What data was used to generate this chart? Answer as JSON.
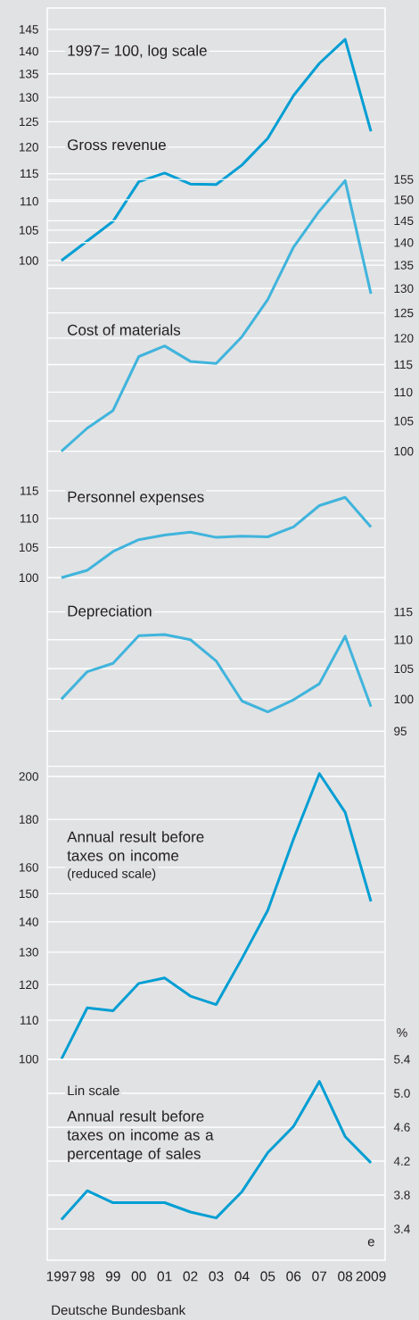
{
  "chart_data": [
    {
      "type": "line",
      "title": "Gross revenue",
      "annotations": [
        "1997= 100, log scale"
      ],
      "x": [
        1997,
        1998,
        1999,
        2000,
        2001,
        2002,
        2003,
        2004,
        2005,
        2006,
        2007,
        2008,
        2009
      ],
      "xlim": [
        1996.45,
        2009.55
      ],
      "ylim": [
        100,
        145
      ],
      "yticks": [
        100,
        105,
        110,
        115,
        120,
        125,
        130,
        135,
        140,
        145
      ],
      "log": "y",
      "grid": "y",
      "tick_labels": "y",
      "series": [
        {
          "color": "#009ed3",
          "values": [
            100,
            103.2,
            106.5,
            113.5,
            115.1,
            113.1,
            113.0,
            116.6,
            121.7,
            130.4,
            137.3,
            142.7,
            123.1
          ]
        }
      ]
    },
    {
      "type": "line",
      "title": "Cost of materials",
      "x": [
        1997,
        1998,
        1999,
        2000,
        2001,
        2002,
        2003,
        2004,
        2005,
        2006,
        2007,
        2008,
        2009
      ],
      "xlim": [
        1996.45,
        2009.55
      ],
      "y2lim": [
        100,
        155
      ],
      "y2ticks": [
        100,
        105,
        110,
        115,
        120,
        125,
        130,
        135,
        140,
        145,
        150,
        155
      ],
      "log": "y2",
      "grid": "y",
      "tick_labels": "y",
      "series": [
        {
          "color": "#40b4dc",
          "axis": "y2",
          "values": [
            100,
            103.8,
            106.8,
            116.5,
            118.5,
            115.6,
            115.2,
            120.3,
            127.7,
            139.0,
            147.3,
            154.7,
            128.9
          ]
        }
      ]
    },
    {
      "type": "line",
      "title": "Personnel expenses",
      "x": [
        1997,
        1998,
        1999,
        2000,
        2001,
        2002,
        2003,
        2004,
        2005,
        2006,
        2007,
        2008,
        2009
      ],
      "xlim": [
        1996.45,
        2009.55
      ],
      "ylim": [
        100,
        115
      ],
      "yticks": [
        100,
        105,
        110,
        115
      ],
      "log": "y",
      "grid": "y",
      "tick_labels": "y",
      "series": [
        {
          "color": "#40b4dc",
          "values": [
            100,
            101.2,
            104.3,
            106.3,
            107.1,
            107.6,
            106.7,
            106.9,
            106.8,
            108.5,
            112.3,
            113.8,
            108.5
          ]
        }
      ]
    },
    {
      "type": "line",
      "title": "Depreciation",
      "x": [
        1997,
        1998,
        1999,
        2000,
        2001,
        2002,
        2003,
        2004,
        2005,
        2006,
        2007,
        2008,
        2009
      ],
      "xlim": [
        1996.45,
        2009.55
      ],
      "y2lim": [
        95,
        115
      ],
      "y2ticks": [
        95,
        100,
        105,
        110,
        115
      ],
      "log": "y2",
      "grid": "y",
      "tick_labels": "y",
      "series": [
        {
          "color": "#40b4dc",
          "axis": "y2",
          "values": [
            100,
            104.5,
            105.9,
            110.7,
            110.9,
            110.0,
            106.3,
            99.7,
            98.0,
            99.9,
            102.5,
            110.6,
            98.8
          ]
        }
      ]
    },
    {
      "type": "line",
      "title": "Annual result before taxes on income",
      "subtitle": "(reduced scale)",
      "x": [
        1997,
        1998,
        1999,
        2000,
        2001,
        2002,
        2003,
        2004,
        2005,
        2006,
        2007,
        2008,
        2009
      ],
      "xlim": [
        1996.45,
        2009.55
      ],
      "ylim": [
        100,
        205
      ],
      "yticks": [
        100,
        110,
        120,
        130,
        140,
        150,
        160,
        180,
        200
      ],
      "log": "y",
      "grid": "y",
      "tick_labels": "y",
      "series": [
        {
          "color": "#009ed3",
          "values": [
            100,
            113.4,
            112.6,
            120.4,
            122.0,
            116.7,
            114.3,
            128.0,
            144.0,
            171.6,
            201.4,
            183.2,
            147.2
          ]
        }
      ]
    },
    {
      "type": "line",
      "title": "Annual result before taxes on income as a percentage of sales",
      "y2label": "%",
      "annotations": [
        "Lin scale",
        "e",
        "Deutsche Bundesbank"
      ],
      "x": [
        1997,
        1998,
        1999,
        2000,
        2001,
        2002,
        2003,
        2004,
        2005,
        2006,
        2007,
        2008,
        2009
      ],
      "xlim": [
        1996.45,
        2009.55
      ],
      "xticks": [
        {
          "value": 1997,
          "label": "1997"
        },
        {
          "value": 1998,
          "label": "98"
        },
        {
          "value": 1999,
          "label": "99"
        },
        {
          "value": 2000,
          "label": "00"
        },
        {
          "value": 2001,
          "label": "01"
        },
        {
          "value": 2002,
          "label": "02"
        },
        {
          "value": 2003,
          "label": "03"
        },
        {
          "value": 2004,
          "label": "04"
        },
        {
          "value": 2005,
          "label": "05"
        },
        {
          "value": 2006,
          "label": "06"
        },
        {
          "value": 2007,
          "label": "07"
        },
        {
          "value": 2008,
          "label": "08"
        },
        {
          "value": 2009,
          "label": "2009"
        }
      ],
      "y2lim": [
        3.4,
        5.4
      ],
      "y2ticks": [
        3.4,
        3.8,
        4.2,
        4.6,
        {
          "value": 5.0,
          "label": "5.0"
        },
        5.4
      ],
      "grid": "y",
      "series": [
        {
          "color": "#009ed3",
          "axis": "y2",
          "values": [
            3.51,
            3.85,
            3.71,
            3.71,
            3.71,
            3.6,
            3.53,
            3.84,
            4.3,
            4.61,
            5.14,
            4.49,
            4.18
          ]
        }
      ]
    }
  ]
}
